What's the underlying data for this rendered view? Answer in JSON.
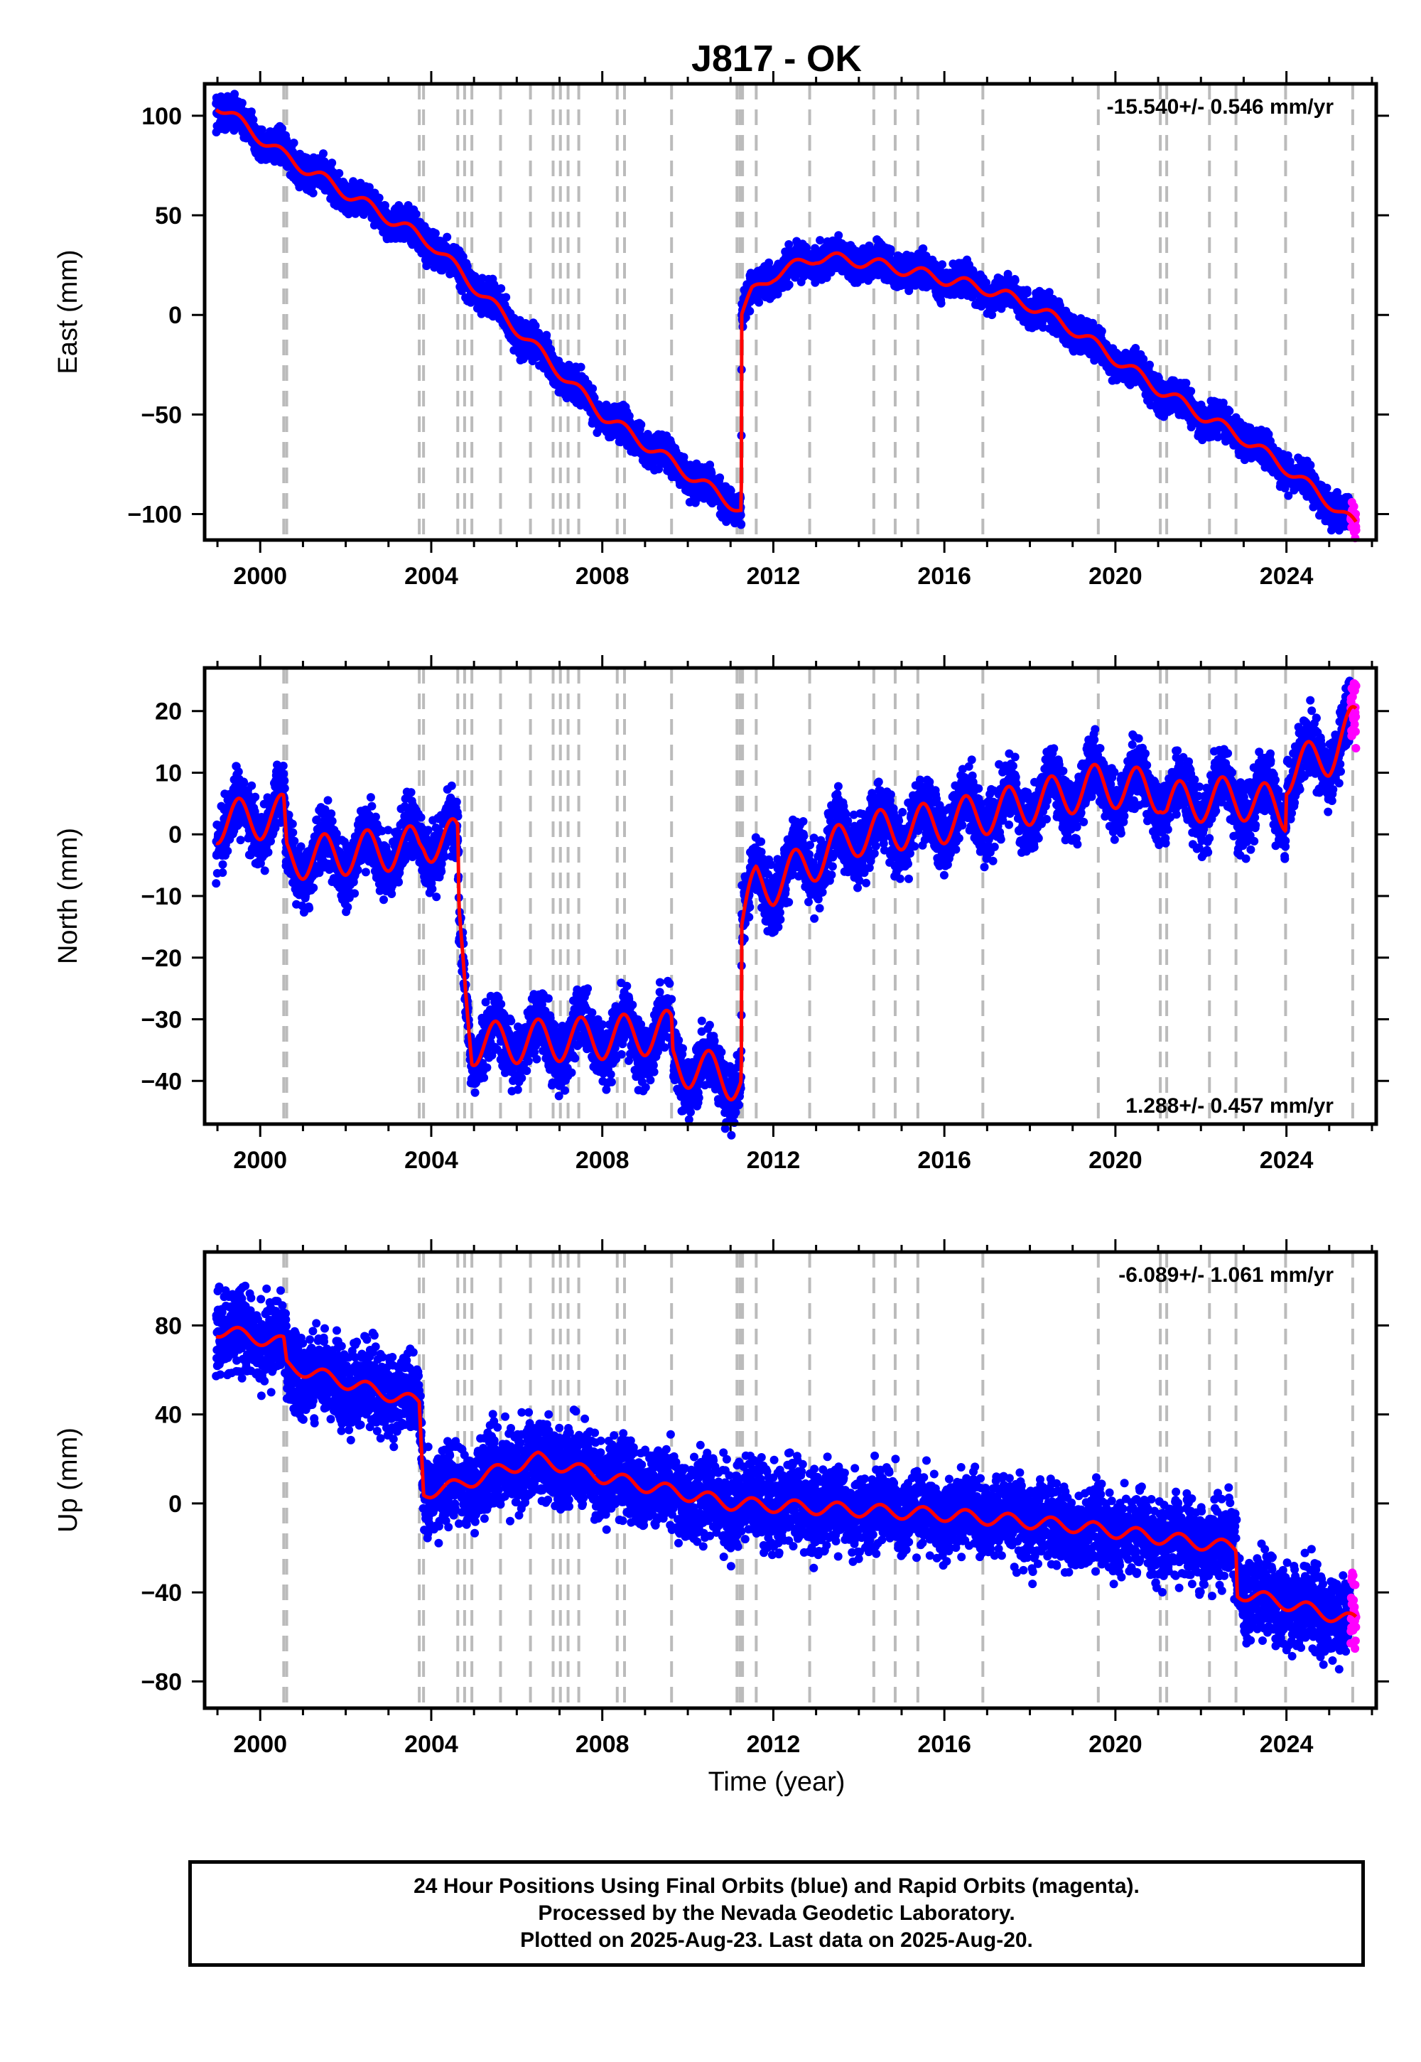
{
  "title": "J817 - OK",
  "xlabel": "Time (year)",
  "colors": {
    "final": "#0000ff",
    "rapid": "#ff00ff",
    "model": "#ff0000",
    "steps": "#bbbbbb",
    "frame": "#000000"
  },
  "footer": {
    "line1": "24 Hour Positions Using Final Orbits (blue) and Rapid Orbits (magenta).",
    "line2": "Processed by the Nevada Geodetic Laboratory.",
    "line3": "Plotted on 2025-Aug-23. Last data on 2025-Aug-20."
  },
  "chart_data": [
    {
      "type": "scatter",
      "ylabel": "East (mm)",
      "rate": "-15.540+/- 0.546 mm/yr",
      "rate_position": "top-right",
      "xlim": [
        1998.7,
        2026.1
      ],
      "ylim": [
        -113,
        116
      ],
      "xticks": [
        2000,
        2004,
        2008,
        2012,
        2016,
        2020,
        2024
      ],
      "yticks": [
        100,
        50,
        0,
        -50,
        -100
      ],
      "step_epochs": [
        2000.55,
        2000.62,
        2003.72,
        2003.82,
        2004.62,
        2004.78,
        2004.95,
        2005.62,
        2006.32,
        2006.85,
        2007.02,
        2007.2,
        2007.45,
        2008.35,
        2008.52,
        2009.62,
        2011.15,
        2011.22,
        2011.28,
        2011.6,
        2012.85,
        2014.35,
        2014.85,
        2015.38,
        2016.9,
        2019.6,
        2021.05,
        2021.2,
        2022.2,
        2022.82,
        2023.98,
        2025.55
      ],
      "model_trend": [
        [
          1998.97,
          106
        ],
        [
          2000.55,
          80
        ],
        [
          2004.0,
          36
        ],
        [
          2008.0,
          -50
        ],
        [
          2011.25,
          -98
        ],
        [
          2011.26,
          0
        ],
        [
          2011.5,
          11
        ],
        [
          2012.0,
          20
        ],
        [
          2013.0,
          29
        ],
        [
          2014.0,
          27
        ],
        [
          2015.0,
          23
        ],
        [
          2016.0,
          18
        ],
        [
          2017.0,
          13
        ],
        [
          2018.0,
          5
        ],
        [
          2019.0,
          -7
        ],
        [
          2020.0,
          -22
        ],
        [
          2021.0,
          -37
        ],
        [
          2022.0,
          -50
        ],
        [
          2023.0,
          -62
        ],
        [
          2024.0,
          -77
        ],
        [
          2025.0,
          -94
        ],
        [
          2025.63,
          -106
        ]
      ],
      "seasonal_amplitude": 3,
      "scatter_spread": 4,
      "rapid_x_start": 2025.5
    },
    {
      "type": "scatter",
      "ylabel": "North (mm)",
      "rate": "1.288+/- 0.457 mm/yr",
      "rate_position": "bottom-right",
      "xlim": [
        1998.7,
        2026.1
      ],
      "ylim": [
        -47,
        27
      ],
      "xticks": [
        2000,
        2004,
        2008,
        2012,
        2016,
        2020,
        2024
      ],
      "yticks": [
        20,
        10,
        0,
        -10,
        -20,
        -30,
        -40
      ],
      "step_epochs": [
        2000.55,
        2000.62,
        2003.72,
        2003.82,
        2004.62,
        2004.78,
        2004.95,
        2005.62,
        2006.32,
        2006.85,
        2007.02,
        2007.2,
        2007.45,
        2008.35,
        2008.52,
        2009.62,
        2011.15,
        2011.22,
        2011.28,
        2011.6,
        2012.85,
        2014.35,
        2014.85,
        2015.38,
        2016.9,
        2019.6,
        2021.05,
        2021.2,
        2022.2,
        2022.82,
        2023.98,
        2025.55
      ],
      "model_trend": [
        [
          1998.97,
          2
        ],
        [
          2000.55,
          3
        ],
        [
          2000.62,
          -4
        ],
        [
          2003.72,
          -2
        ],
        [
          2003.82,
          -1
        ],
        [
          2004.62,
          -1
        ],
        [
          2004.65,
          -14
        ],
        [
          2004.95,
          -34
        ],
        [
          2008.0,
          -33
        ],
        [
          2009.62,
          -32
        ],
        [
          2009.65,
          -37
        ],
        [
          2011.25,
          -40
        ],
        [
          2011.26,
          -15
        ],
        [
          2011.6,
          -8
        ],
        [
          2012.0,
          -8
        ],
        [
          2013.0,
          -4
        ],
        [
          2014.0,
          0
        ],
        [
          2016.0,
          2
        ],
        [
          2018.0,
          5
        ],
        [
          2019.6,
          8
        ],
        [
          2021.05,
          7
        ],
        [
          2021.2,
          5
        ],
        [
          2022.82,
          6
        ],
        [
          2023.98,
          4
        ],
        [
          2024.0,
          10
        ],
        [
          2025.0,
          13
        ],
        [
          2025.63,
          18
        ]
      ],
      "seasonal_amplitude": 3.5,
      "scatter_spread": 2.5,
      "rapid_x_start": 2025.5
    },
    {
      "type": "scatter",
      "ylabel": "Up (mm)",
      "rate": "-6.089+/- 1.061 mm/yr",
      "rate_position": "top-right",
      "xlim": [
        1998.7,
        2026.1
      ],
      "ylim": [
        -92,
        113
      ],
      "xticks": [
        2000,
        2004,
        2008,
        2012,
        2016,
        2020,
        2024
      ],
      "yticks": [
        80,
        40,
        0,
        -40,
        -80
      ],
      "step_epochs": [
        2000.55,
        2000.62,
        2003.72,
        2003.82,
        2004.62,
        2004.78,
        2004.95,
        2005.62,
        2006.32,
        2006.85,
        2007.02,
        2007.2,
        2007.45,
        2008.35,
        2008.52,
        2009.62,
        2011.15,
        2011.22,
        2011.28,
        2011.6,
        2012.85,
        2014.35,
        2014.85,
        2015.38,
        2016.9,
        2019.6,
        2021.05,
        2021.2,
        2022.2,
        2022.82,
        2023.98,
        2025.55
      ],
      "model_trend": [
        [
          1998.97,
          78
        ],
        [
          2000.55,
          72
        ],
        [
          2000.62,
          62
        ],
        [
          2003.72,
          45
        ],
        [
          2003.82,
          5
        ],
        [
          2004.62,
          8
        ],
        [
          2005.62,
          15
        ],
        [
          2006.5,
          20
        ],
        [
          2008.0,
          12
        ],
        [
          2011.0,
          0
        ],
        [
          2013.0,
          -2
        ],
        [
          2016.0,
          -5
        ],
        [
          2019.0,
          -10
        ],
        [
          2022.82,
          -20
        ],
        [
          2022.85,
          -40
        ],
        [
          2024.0,
          -45
        ],
        [
          2025.63,
          -53
        ]
      ],
      "seasonal_amplitude": 3,
      "scatter_spread": 9,
      "rapid_x_start": 2025.5
    }
  ]
}
